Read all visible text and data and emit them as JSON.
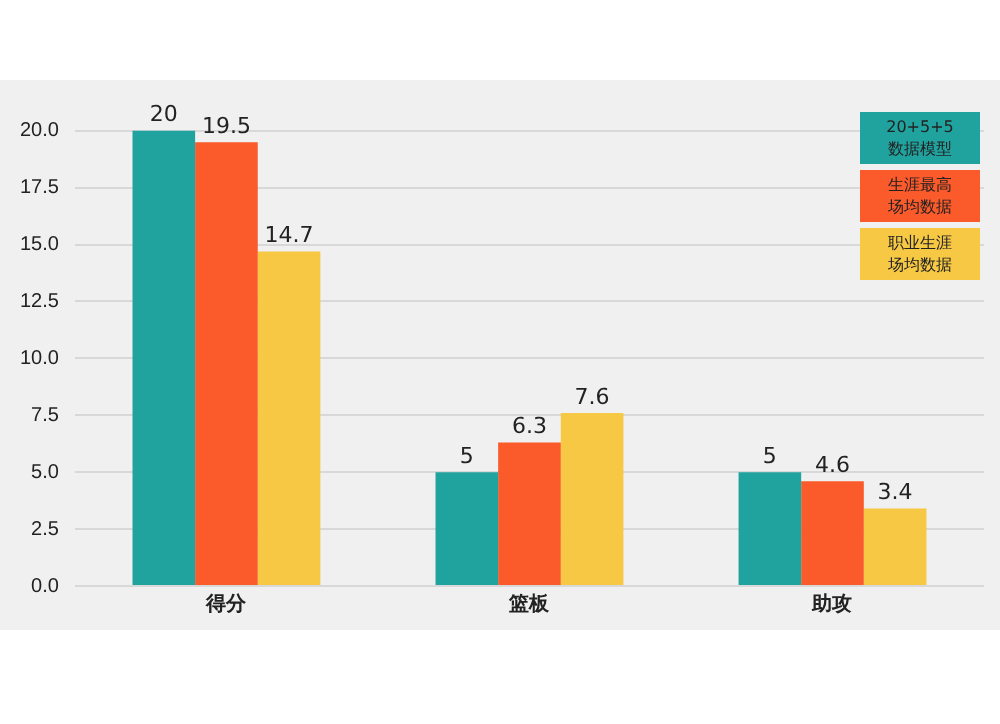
{
  "chart_data": {
    "type": "bar",
    "categories": [
      "得分",
      "篮板",
      "助攻"
    ],
    "series": [
      {
        "name": "20+5+5 数据模型",
        "color": "#20a39e",
        "values": [
          20,
          5,
          5
        ]
      },
      {
        "name": "生涯最高场均数据",
        "color": "#fb5a2a",
        "values": [
          19.5,
          6.3,
          4.6
        ]
      },
      {
        "name": "职业生涯场均数据",
        "color": "#f6c844",
        "values": [
          14.7,
          7.6,
          3.4
        ]
      }
    ],
    "ylim": [
      0,
      21
    ],
    "yticks": [
      {
        "value": 0,
        "label": "0.0"
      },
      {
        "value": 2.5,
        "label": "2.5"
      },
      {
        "value": 5,
        "label": "5.0"
      },
      {
        "value": 7.5,
        "label": "7.5"
      },
      {
        "value": 10,
        "label": "10.0"
      },
      {
        "value": 12.5,
        "label": "12.5"
      },
      {
        "value": 15,
        "label": "15.0"
      },
      {
        "value": 17.5,
        "label": "17.5"
      },
      {
        "value": 20,
        "label": "20.0"
      }
    ],
    "grid": "y",
    "legend": "top right",
    "data_labels": true
  }
}
